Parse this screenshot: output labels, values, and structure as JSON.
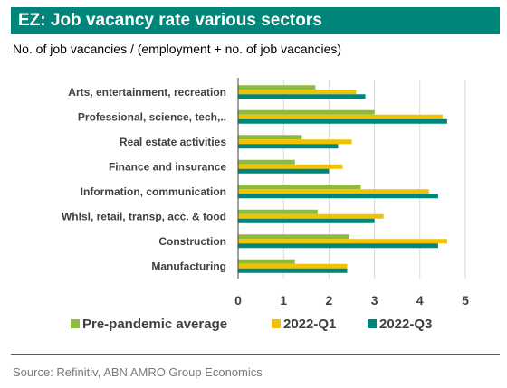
{
  "title": "EZ: Job vacancy rate various sectors",
  "subtitle": "No. of job vacancies / (employment + no. of job vacancies)",
  "source": "Source: Refinitiv, ABN AMRO Group Economics",
  "colors": {
    "title_bar": "#00857a",
    "series": [
      "#8dbb3c",
      "#f2c200",
      "#00857a"
    ]
  },
  "chart_data": {
    "type": "bar",
    "orientation": "horizontal",
    "categories": [
      "Arts, entertainment, recreation",
      "Professional, science, tech,..",
      "Real estate activities",
      "Finance and insurance",
      "Information, communication",
      "Whlsl, retail, transp, acc. & food",
      "Construction",
      "Manufacturing"
    ],
    "series": [
      {
        "name": "Pre-pandemic average",
        "values": [
          1.7,
          3.0,
          1.4,
          1.25,
          2.7,
          1.75,
          2.45,
          1.25
        ]
      },
      {
        "name": "2022-Q1",
        "values": [
          2.6,
          4.5,
          2.5,
          2.3,
          4.2,
          3.2,
          4.6,
          2.4
        ]
      },
      {
        "name": "2022-Q3",
        "values": [
          2.8,
          4.6,
          2.2,
          2.0,
          4.4,
          3.0,
          4.4,
          2.4
        ]
      }
    ],
    "xlim": [
      0,
      5
    ],
    "xticks": [
      "0",
      "1",
      "2",
      "3",
      "4",
      "5"
    ],
    "grid": "vertical",
    "legend": "bottom"
  }
}
